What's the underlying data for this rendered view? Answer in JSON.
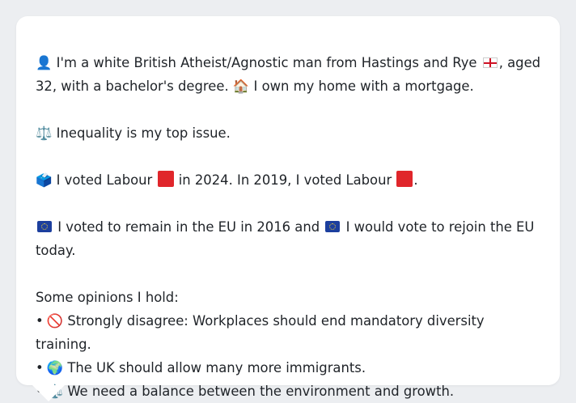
{
  "profile": {
    "intro_text": "I'm a white British Atheist/Agnostic man from Hastings and Rye",
    "intro_text_2": ", aged 32, with a bachelor's degree.",
    "home_text": "I own my home with a mortgage.",
    "person_icon": "👤",
    "home_icon": "🏠"
  },
  "issue": {
    "icon": "⚖️",
    "text": "Inequality is my top issue."
  },
  "vote": {
    "icon": "🗳️",
    "text_a": "I voted Labour",
    "text_b": "in 2024. In 2019, I voted Labour",
    "text_c": ".",
    "party_color": "#e0262b"
  },
  "eu": {
    "text_a": "I voted to remain in the EU in 2016 and",
    "text_b": "I would vote to rejoin the EU today."
  },
  "opinions": {
    "heading": "Some opinions I hold:",
    "bullet": "•",
    "items": [
      {
        "icon": "🚫",
        "text": "Strongly disagree: Workplaces should end mandatory diversity training."
      },
      {
        "icon": "🌍",
        "text": "The UK should allow many more immigrants."
      },
      {
        "icon": "⚖️",
        "text": "We need a balance between the environment and growth."
      }
    ]
  }
}
